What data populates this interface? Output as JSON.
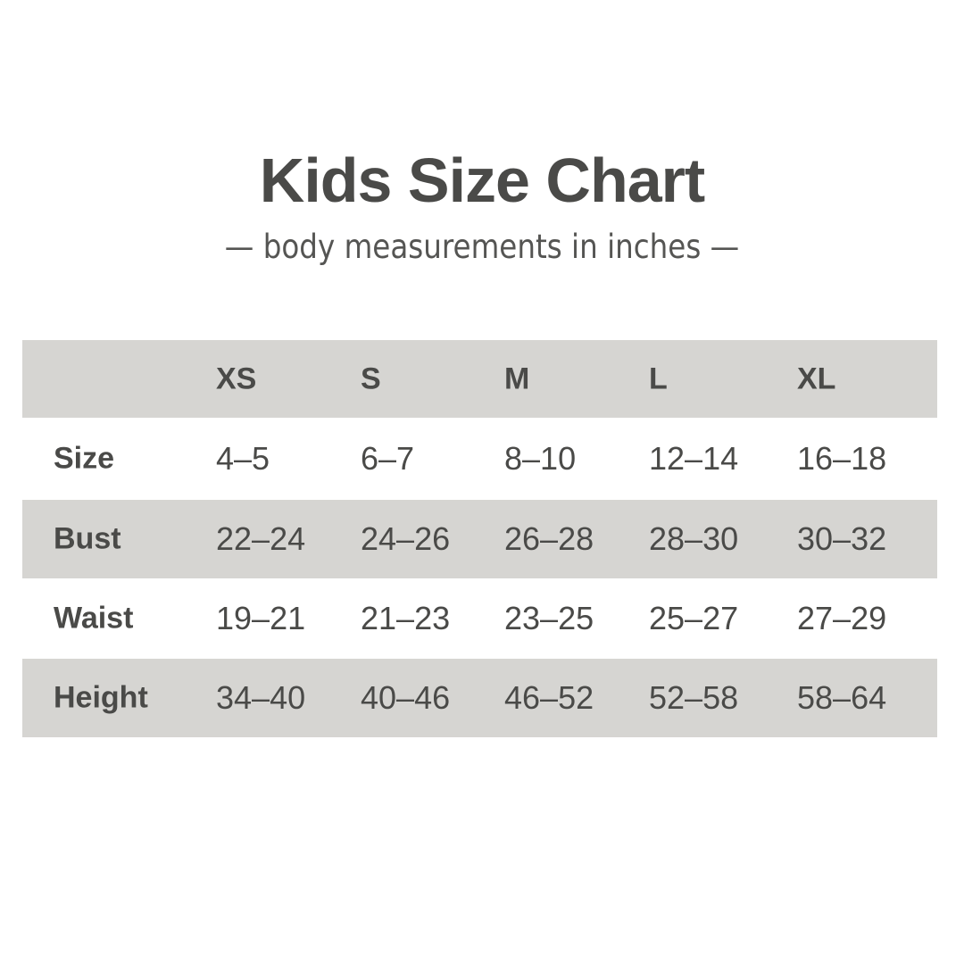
{
  "title": "Kids Size Chart",
  "subtitle": "— body measurements in inches —",
  "colors": {
    "text": "#4a4a48",
    "band": "#d6d5d2",
    "background": "#ffffff"
  },
  "columns": [
    "XS",
    "S",
    "M",
    "L",
    "XL"
  ],
  "rows": [
    {
      "label": "Size",
      "values": [
        "4–5",
        "6–7",
        "8–10",
        "12–14",
        "16–18"
      ]
    },
    {
      "label": "Bust",
      "values": [
        "22–24",
        "24–26",
        "26–28",
        "28–30",
        "30–32"
      ]
    },
    {
      "label": "Waist",
      "values": [
        "19–21",
        "21–23",
        "23–25",
        "25–27",
        "27–29"
      ]
    },
    {
      "label": "Height",
      "values": [
        "34–40",
        "40–46",
        "46–52",
        "52–58",
        "58–64"
      ]
    }
  ]
}
